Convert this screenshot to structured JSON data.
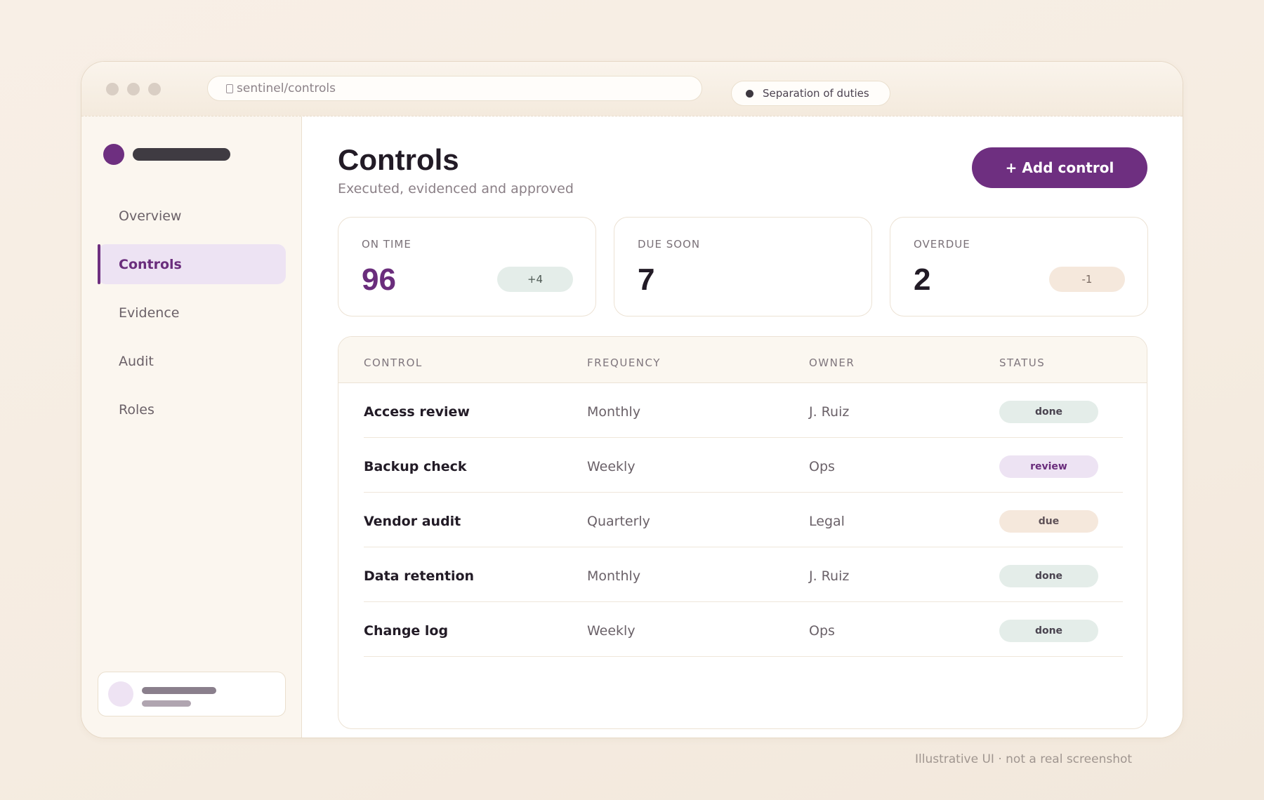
{
  "browser": {
    "url": "sentinel/controls",
    "context_pill": "Separation of duties"
  },
  "sidebar": {
    "items": [
      {
        "label": "Overview",
        "active": false
      },
      {
        "label": "Controls",
        "active": true
      },
      {
        "label": "Evidence",
        "active": false
      },
      {
        "label": "Audit",
        "active": false
      },
      {
        "label": "Roles",
        "active": false
      }
    ]
  },
  "header": {
    "title": "Controls",
    "subtitle": "Executed, evidenced and approved",
    "add_button": "+ Add control"
  },
  "stats": [
    {
      "label": "ON TIME",
      "value": "96",
      "delta": "+4"
    },
    {
      "label": "DUE SOON",
      "value": "7",
      "delta": ""
    },
    {
      "label": "OVERDUE",
      "value": "2",
      "delta": "-1"
    }
  ],
  "table": {
    "columns": [
      "CONTROL",
      "FREQUENCY",
      "OWNER",
      "STATUS"
    ],
    "rows": [
      {
        "control": "Access review",
        "frequency": "Monthly",
        "owner": "J. Ruiz",
        "status": "done"
      },
      {
        "control": "Backup check",
        "frequency": "Weekly",
        "owner": "Ops",
        "status": "review"
      },
      {
        "control": "Vendor audit",
        "frequency": "Quarterly",
        "owner": "Legal",
        "status": "due"
      },
      {
        "control": "Data retention",
        "frequency": "Monthly",
        "owner": "J. Ruiz",
        "status": "done"
      },
      {
        "control": "Change log",
        "frequency": "Weekly",
        "owner": "Ops",
        "status": "done"
      }
    ]
  },
  "colors": {
    "accent": "#6e2f80",
    "status_done": "#e4ede9",
    "status_review": "#ede3f3",
    "status_due": "#f5e8dc"
  },
  "footer_note": "Illustrative UI · not a real screenshot"
}
